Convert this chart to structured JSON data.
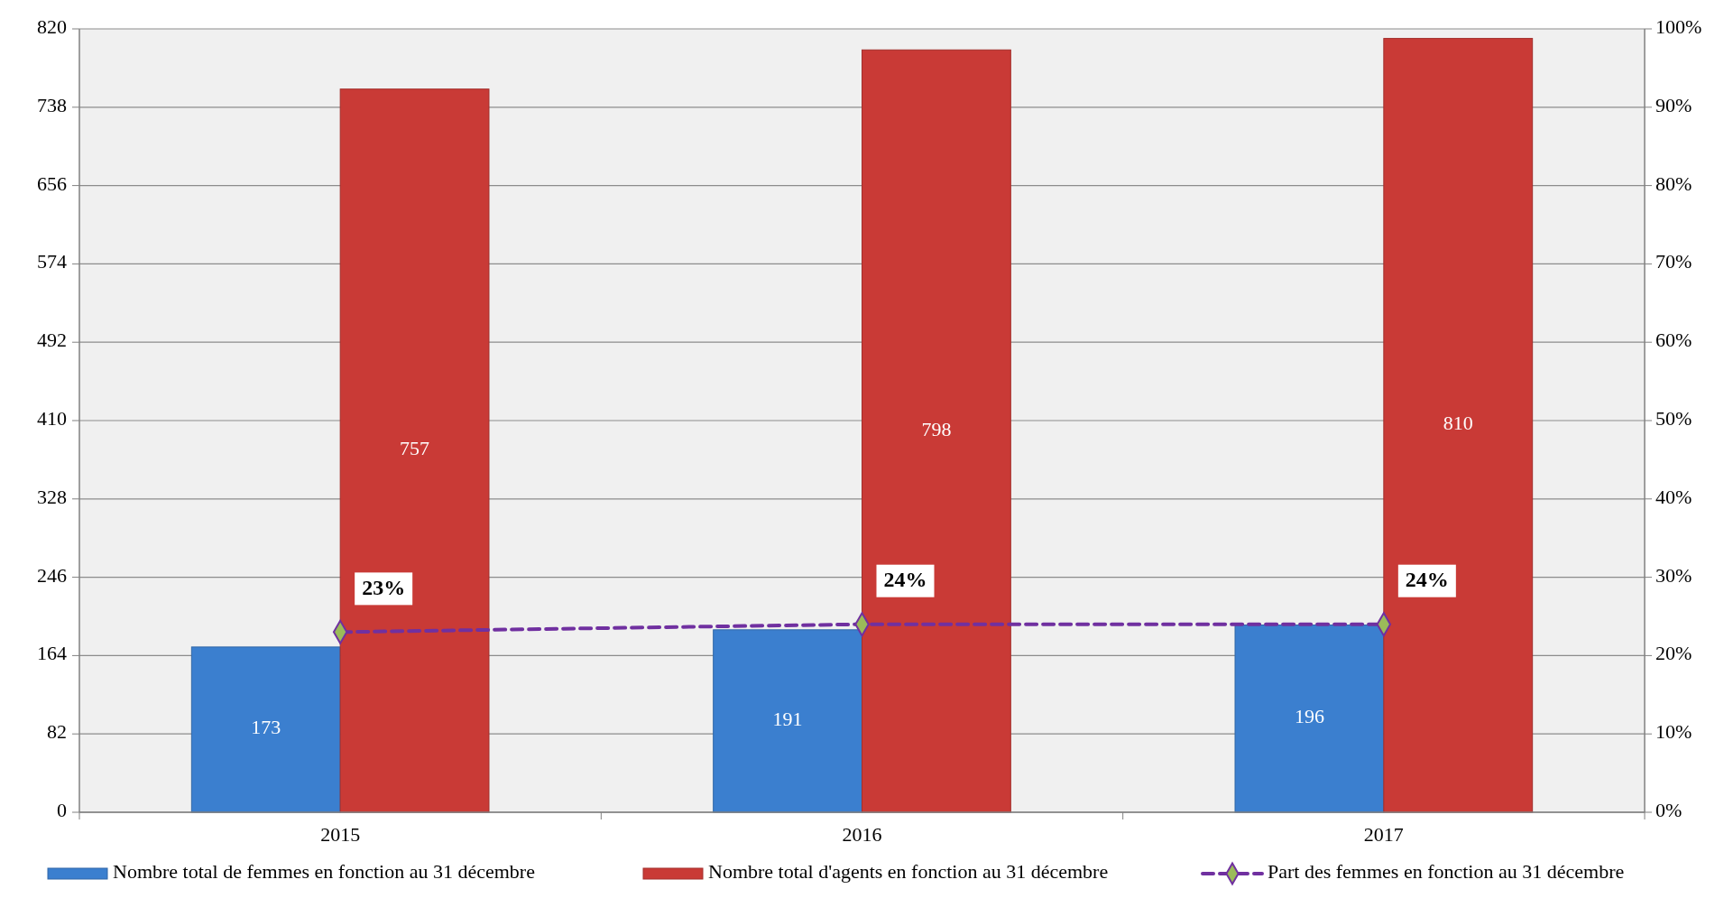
{
  "chart_data": {
    "type": "bar",
    "categories": [
      "2015",
      "2016",
      "2017"
    ],
    "series": [
      {
        "name": "Nombre total de femmes en fonction au 31 décembre",
        "color": "#3b7fcf",
        "values": [
          173,
          191,
          196
        ],
        "value_labels": [
          "173",
          "191",
          "196"
        ]
      },
      {
        "name": "Nombre total d'agents en fonction au 31 décembre",
        "color": "#c93a36",
        "values": [
          757,
          798,
          810
        ],
        "value_labels": [
          "757",
          "798",
          "810"
        ]
      },
      {
        "name": "Part des femmes en fonction au 31 décembre",
        "type": "line",
        "axis": "y2",
        "color": "#7030a0",
        "values": [
          23,
          24,
          24
        ],
        "value_labels": [
          "23%",
          "24%",
          "24%"
        ],
        "marker": "diamond",
        "line_style": "dashed"
      }
    ],
    "ylim": [
      0,
      820
    ],
    "yticks": [
      0,
      82,
      164,
      246,
      328,
      410,
      492,
      574,
      656,
      738,
      820
    ],
    "y2lim": [
      0,
      100
    ],
    "y2ticks": [
      {
        "value": 0,
        "label": "0%"
      },
      {
        "value": 10,
        "label": "10%"
      },
      {
        "value": 20,
        "label": "20%"
      },
      {
        "value": 30,
        "label": "30%"
      },
      {
        "value": 40,
        "label": "40%"
      },
      {
        "value": 50,
        "label": "50%"
      },
      {
        "value": 60,
        "label": "60%"
      },
      {
        "value": 70,
        "label": "70%"
      },
      {
        "value": 80,
        "label": "80%"
      },
      {
        "value": 90,
        "label": "90%"
      },
      {
        "value": 100,
        "label": "100%"
      }
    ],
    "grid": "y",
    "legend": "bottom"
  }
}
